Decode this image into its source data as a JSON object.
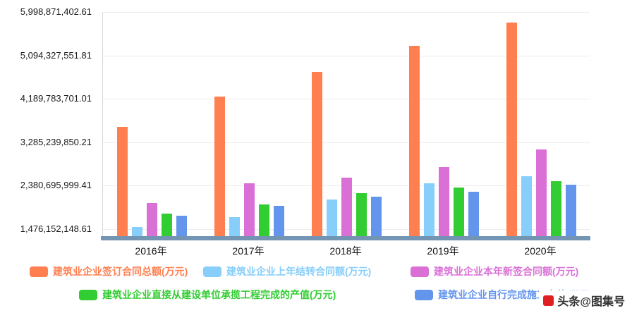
{
  "watermark": {
    "text": "头条@图集号"
  },
  "chart_data": {
    "type": "bar",
    "title": "",
    "xlabel": "",
    "ylabel": "",
    "grid": true,
    "legend_position": "bottom",
    "categories": [
      "2016年",
      "2017年",
      "2018年",
      "2019年",
      "2020年"
    ],
    "series": [
      {
        "name": "建筑业企业签订合同总额(万元)",
        "color": "#FF7F50",
        "values": [
          3600000000,
          4240000000,
          4750000000,
          5290000000,
          5780000000
        ]
      },
      {
        "name": "建筑业企业上年结转合同额(万元)",
        "color": "#87CEFA",
        "values": [
          1520000000,
          1730000000,
          2090000000,
          2430000000,
          2580000000
        ]
      },
      {
        "name": "建筑业企业本年新签合同额(万元)",
        "color": "#DA70D6",
        "values": [
          2020000000,
          2430000000,
          2550000000,
          2770000000,
          3140000000
        ]
      },
      {
        "name": "建筑业企业直接从建设单位承揽工程完成的产值(万元)",
        "color": "#32CD32",
        "values": [
          1800000000,
          1990000000,
          2230000000,
          2340000000,
          2470000000
        ]
      },
      {
        "name": "建筑业企业自行完成施工产值(万元)",
        "color": "#6495ED",
        "values": [
          1760000000,
          1960000000,
          2150000000,
          2250000000,
          2400000000
        ]
      }
    ],
    "y_ticks": [
      "1,476,152,148.61",
      "2,380,695,999.41",
      "3,285,239,850.21",
      "4,189,783,701.01",
      "5,094,327,551.81",
      "5,998,871,402.61"
    ],
    "y_tick_values": [
      1476152148.61,
      2380695999.41,
      3285239850.21,
      4189783701.01,
      5094327551.81,
      5998871402.61
    ],
    "ylim": [
      1329000000,
      5998871402.61
    ]
  }
}
